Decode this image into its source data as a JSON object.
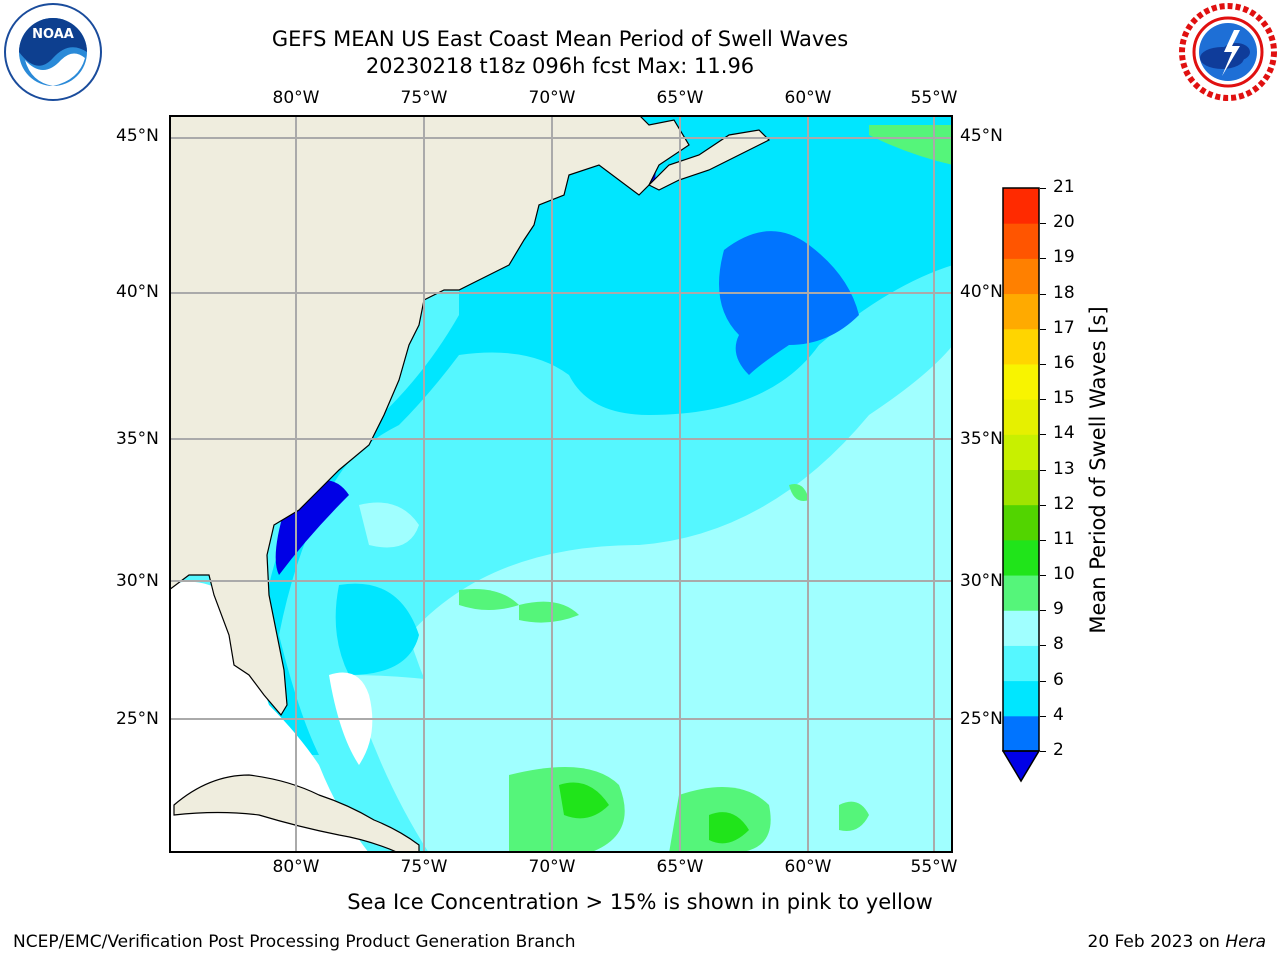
{
  "title": "GEFS MEAN US East Coast Mean Period of Swell Waves",
  "subtitle": "20230218 t18z 096h fcst   Max: 11.96",
  "logos": {
    "left": "noaa-logo",
    "right": "national-weather-service-logo"
  },
  "map": {
    "region": "US East Coast",
    "lat_labels": [
      "45°N",
      "40°N",
      "35°N",
      "30°N",
      "25°N"
    ],
    "lon_labels": [
      "80°W",
      "75°W",
      "70°W",
      "65°W",
      "60°W",
      "55°W"
    ],
    "colors": {
      "land": "#efedde",
      "coast": "#000000",
      "grid": "#aaaaaa",
      "undefined": "#ffffff"
    }
  },
  "colorbar": {
    "label": "Mean Period of Swell Waves [s]",
    "ticks": [
      "2",
      "4",
      "6",
      "8",
      "9",
      "10",
      "11",
      "12",
      "13",
      "14",
      "15",
      "16",
      "17",
      "18",
      "19",
      "20",
      "21"
    ],
    "colors": [
      "#0074ff",
      "#00e6ff",
      "#55f7ff",
      "#a0ffff",
      "#55f57a",
      "#20e41a",
      "#52d400",
      "#a0e400",
      "#c8f000",
      "#e6f000",
      "#f8f400",
      "#ffd500",
      "#ffaa00",
      "#ff8000",
      "#ff5500",
      "#ff2a00"
    ],
    "extend_color": "#0000e6"
  },
  "chart_data": {
    "type": "heatmap",
    "title": "GEFS MEAN US East Coast Mean Period of Swell Waves",
    "subtitle": "20230218 t18z 096h fcst",
    "variable": "Mean Period of Swell Waves [s]",
    "max": 11.96,
    "lon_range": [
      -85,
      -54
    ],
    "lat_range": [
      20.5,
      45.5
    ],
    "levels": [
      2,
      4,
      6,
      8,
      9,
      10,
      11,
      12,
      13,
      14,
      15,
      16,
      17,
      18,
      19,
      20,
      21
    ]
  },
  "note": "Sea Ice Concentration > 15% is shown in pink to yellow",
  "footer": {
    "left": "NCEP/EMC/Verification Post Processing Product Generation Branch",
    "date": "20 Feb 2023 on ",
    "host": "Hera"
  }
}
